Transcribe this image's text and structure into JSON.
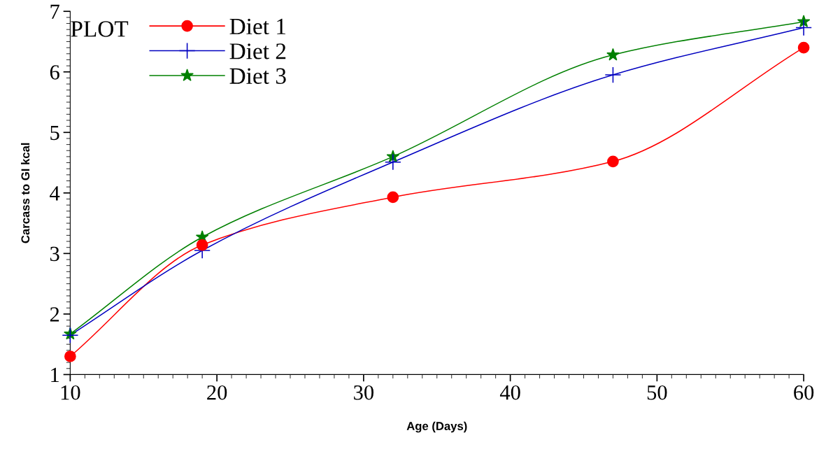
{
  "chart_data": {
    "type": "line",
    "xlabel": "Age (Days)",
    "ylabel": "Carcass to GI kcal",
    "legend_title": "PLOT",
    "x": [
      10,
      19,
      32,
      47,
      60
    ],
    "series": [
      {
        "name": "Diet 1",
        "color": "#ff0000",
        "marker": "circle",
        "values": [
          1.3,
          3.14,
          3.93,
          4.52,
          6.4
        ]
      },
      {
        "name": "Diet 2",
        "color": "#0000c0",
        "marker": "cross",
        "values": [
          1.65,
          3.05,
          4.51,
          5.95,
          6.73
        ]
      },
      {
        "name": "Diet 3",
        "color": "#008000",
        "marker": "star",
        "values": [
          1.67,
          3.27,
          4.6,
          6.28,
          6.83
        ]
      }
    ],
    "xlim": [
      10,
      60
    ],
    "xticks": [
      10,
      20,
      30,
      40,
      50,
      60
    ],
    "ylim": [
      1,
      7
    ],
    "yticks": [
      1,
      2,
      3,
      4,
      5,
      6,
      7
    ],
    "grid": false,
    "legend": "top left",
    "line_style": "solid"
  }
}
